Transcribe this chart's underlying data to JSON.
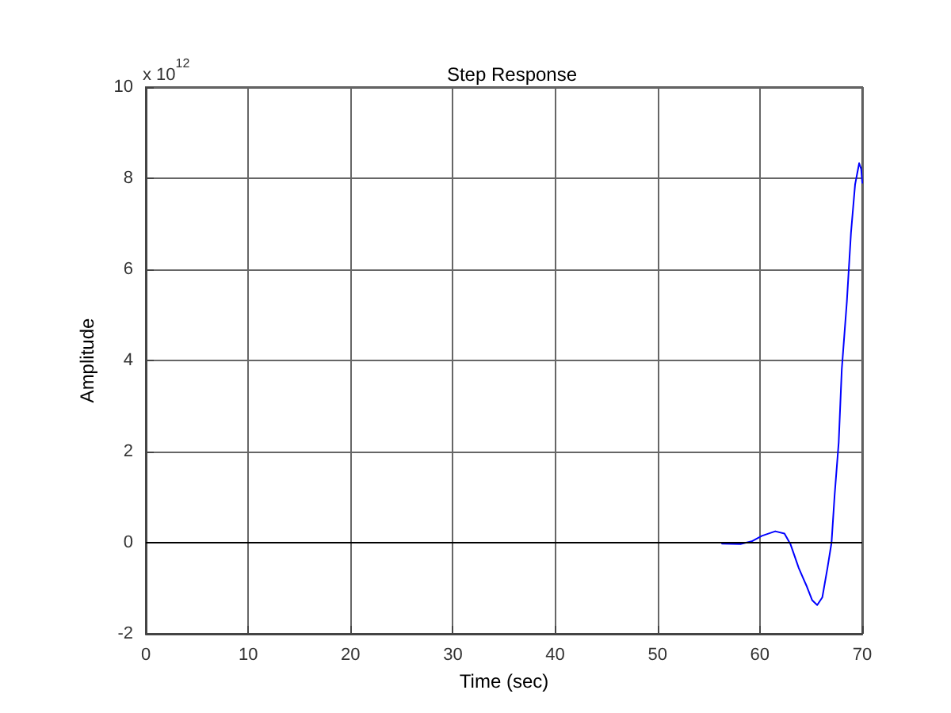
{
  "chart_data": {
    "type": "line",
    "title": "Step Response",
    "xlabel": "Time (sec)",
    "ylabel": "Amplitude",
    "annotations": [
      "x 10$^{12}$"
    ],
    "xlim": [
      0,
      70
    ],
    "xticks": [
      0,
      10,
      20,
      30,
      40,
      50,
      60,
      70
    ],
    "ylim": [
      -2,
      10
    ],
    "yticks": [
      -2,
      0,
      2,
      4,
      6,
      8,
      10
    ],
    "grid": true,
    "marker": "none",
    "line_style": "solid",
    "ref_lines": [
      {
        "axis": "y",
        "value": 0,
        "color": "#000000"
      }
    ],
    "series": [
      {
        "color": "#0000ff",
        "x": [
          56.3,
          58.1,
          59.2,
          60.2,
          61.5,
          62.4,
          63.0,
          63.8,
          64.6,
          65.1,
          65.6,
          66.1,
          66.6,
          67.0,
          67.3,
          67.7,
          68.0,
          68.5,
          68.9,
          69.3,
          69.7,
          69.9,
          70
        ],
        "values": [
          -0.02,
          -0.03,
          0.03,
          0.15,
          0.25,
          0.2,
          -0.04,
          -0.56,
          -0.97,
          -1.26,
          -1.37,
          -1.2,
          -0.56,
          0,
          1.04,
          2.2,
          3.8,
          5.3,
          6.8,
          7.86,
          8.33,
          8.2,
          7.9
        ]
      }
    ]
  }
}
